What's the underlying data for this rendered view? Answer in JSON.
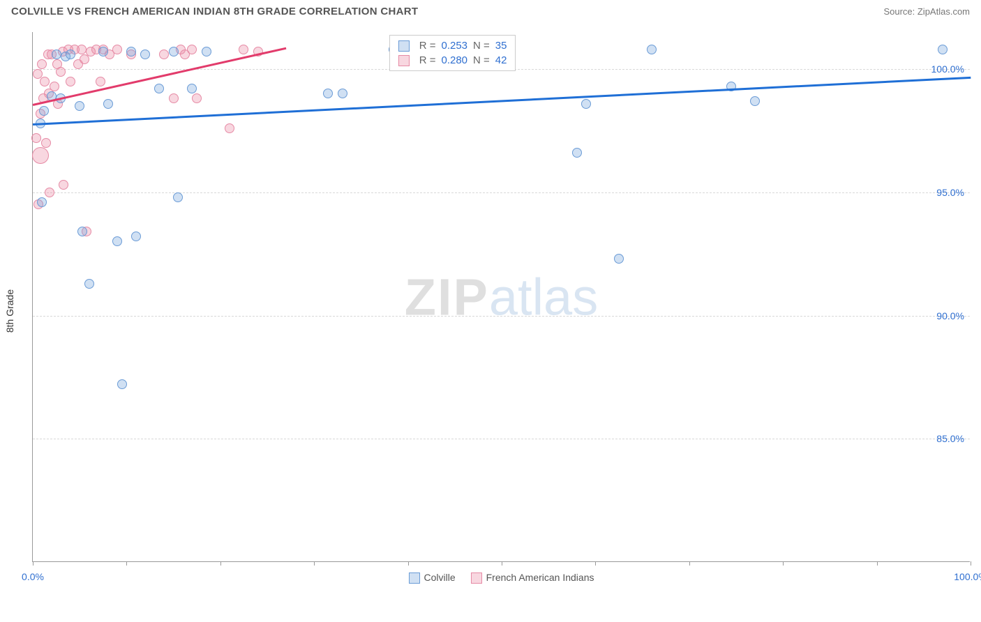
{
  "header": {
    "title": "COLVILLE VS FRENCH AMERICAN INDIAN 8TH GRADE CORRELATION CHART",
    "source": "Source: ZipAtlas.com"
  },
  "watermark": {
    "zip": "ZIP",
    "atlas": "atlas"
  },
  "chart": {
    "type": "scatter",
    "yaxis_title": "8th Grade",
    "xlim": [
      0,
      100
    ],
    "ylim": [
      80,
      101.5
    ],
    "x_ticks": [
      0,
      10,
      20,
      30,
      40,
      50,
      60,
      70,
      80,
      90,
      100
    ],
    "x_tick_labels": {
      "0": "0.0%",
      "100": "100.0%"
    },
    "y_gridlines": [
      85,
      90,
      95,
      100
    ],
    "y_tick_labels": {
      "85": "85.0%",
      "90": "90.0%",
      "95": "95.0%",
      "100": "100.0%"
    },
    "axis_label_color": "#2f6fd0",
    "grid_color": "#d8d8d8",
    "background_color": "#ffffff",
    "series": [
      {
        "name": "Colville",
        "fill": "rgba(120,165,220,0.35)",
        "stroke": "#6a9bd6",
        "trend_color": "#1f6fd6",
        "trend": {
          "x1": 0,
          "y1": 97.8,
          "x2": 100,
          "y2": 99.7
        },
        "r_value": "0.253",
        "n_value": "35",
        "points": [
          {
            "x": 0.8,
            "y": 97.8,
            "r": 7
          },
          {
            "x": 1.2,
            "y": 98.3,
            "r": 7
          },
          {
            "x": 1.0,
            "y": 94.6,
            "r": 7
          },
          {
            "x": 2.0,
            "y": 98.9,
            "r": 7
          },
          {
            "x": 2.5,
            "y": 100.6,
            "r": 7
          },
          {
            "x": 3.0,
            "y": 98.8,
            "r": 7
          },
          {
            "x": 3.5,
            "y": 100.5,
            "r": 7
          },
          {
            "x": 4.0,
            "y": 100.6,
            "r": 7
          },
          {
            "x": 5.0,
            "y": 98.5,
            "r": 7
          },
          {
            "x": 5.3,
            "y": 93.4,
            "r": 7
          },
          {
            "x": 6.0,
            "y": 91.3,
            "r": 7
          },
          {
            "x": 7.5,
            "y": 100.7,
            "r": 7
          },
          {
            "x": 8.0,
            "y": 98.6,
            "r": 7
          },
          {
            "x": 9.0,
            "y": 93.0,
            "r": 7
          },
          {
            "x": 9.5,
            "y": 87.2,
            "r": 7
          },
          {
            "x": 10.5,
            "y": 100.7,
            "r": 7
          },
          {
            "x": 11.0,
            "y": 93.2,
            "r": 7
          },
          {
            "x": 12.0,
            "y": 100.6,
            "r": 7
          },
          {
            "x": 13.5,
            "y": 99.2,
            "r": 7
          },
          {
            "x": 15.0,
            "y": 100.7,
            "r": 7
          },
          {
            "x": 15.5,
            "y": 94.8,
            "r": 7
          },
          {
            "x": 17.0,
            "y": 99.2,
            "r": 7
          },
          {
            "x": 18.5,
            "y": 100.7,
            "r": 7
          },
          {
            "x": 31.5,
            "y": 99.0,
            "r": 7
          },
          {
            "x": 33.0,
            "y": 99.0,
            "r": 7
          },
          {
            "x": 38.5,
            "y": 100.8,
            "r": 7
          },
          {
            "x": 40.0,
            "y": 100.8,
            "r": 7
          },
          {
            "x": 42.0,
            "y": 100.8,
            "r": 7
          },
          {
            "x": 58.0,
            "y": 96.6,
            "r": 7
          },
          {
            "x": 59.0,
            "y": 98.6,
            "r": 7
          },
          {
            "x": 62.5,
            "y": 92.3,
            "r": 7
          },
          {
            "x": 66.0,
            "y": 100.8,
            "r": 7
          },
          {
            "x": 74.5,
            "y": 99.3,
            "r": 7
          },
          {
            "x": 77.0,
            "y": 98.7,
            "r": 7
          },
          {
            "x": 97.0,
            "y": 100.8,
            "r": 7
          }
        ]
      },
      {
        "name": "French American Indians",
        "fill": "rgba(235,140,165,0.35)",
        "stroke": "#e68aa5",
        "trend_color": "#e23b6b",
        "trend": {
          "x1": 0,
          "y1": 98.6,
          "x2": 27,
          "y2": 100.9
        },
        "r_value": "0.280",
        "n_value": "42",
        "points": [
          {
            "x": 0.4,
            "y": 97.2,
            "r": 7
          },
          {
            "x": 0.5,
            "y": 99.8,
            "r": 7
          },
          {
            "x": 0.6,
            "y": 94.5,
            "r": 7
          },
          {
            "x": 0.8,
            "y": 98.2,
            "r": 7
          },
          {
            "x": 0.8,
            "y": 96.5,
            "r": 12
          },
          {
            "x": 1.0,
            "y": 100.2,
            "r": 7
          },
          {
            "x": 1.1,
            "y": 98.8,
            "r": 7
          },
          {
            "x": 1.3,
            "y": 99.5,
            "r": 7
          },
          {
            "x": 1.4,
            "y": 97.0,
            "r": 7
          },
          {
            "x": 1.6,
            "y": 100.6,
            "r": 7
          },
          {
            "x": 1.7,
            "y": 99.0,
            "r": 7
          },
          {
            "x": 1.8,
            "y": 95.0,
            "r": 7
          },
          {
            "x": 2.0,
            "y": 100.6,
            "r": 7
          },
          {
            "x": 2.3,
            "y": 99.3,
            "r": 7
          },
          {
            "x": 2.6,
            "y": 100.2,
            "r": 7
          },
          {
            "x": 2.7,
            "y": 98.6,
            "r": 7
          },
          {
            "x": 3.0,
            "y": 99.9,
            "r": 7
          },
          {
            "x": 3.2,
            "y": 100.7,
            "r": 7
          },
          {
            "x": 3.3,
            "y": 95.3,
            "r": 7
          },
          {
            "x": 3.8,
            "y": 100.8,
            "r": 7
          },
          {
            "x": 4.0,
            "y": 99.5,
            "r": 7
          },
          {
            "x": 4.5,
            "y": 100.8,
            "r": 7
          },
          {
            "x": 4.8,
            "y": 100.2,
            "r": 7
          },
          {
            "x": 5.2,
            "y": 100.8,
            "r": 7
          },
          {
            "x": 5.5,
            "y": 100.4,
            "r": 7
          },
          {
            "x": 5.7,
            "y": 93.4,
            "r": 7
          },
          {
            "x": 6.2,
            "y": 100.7,
            "r": 7
          },
          {
            "x": 6.8,
            "y": 100.8,
            "r": 7
          },
          {
            "x": 7.2,
            "y": 99.5,
            "r": 7
          },
          {
            "x": 7.5,
            "y": 100.8,
            "r": 7
          },
          {
            "x": 8.2,
            "y": 100.6,
            "r": 7
          },
          {
            "x": 9.0,
            "y": 100.8,
            "r": 7
          },
          {
            "x": 10.5,
            "y": 100.6,
            "r": 7
          },
          {
            "x": 14.0,
            "y": 100.6,
            "r": 7
          },
          {
            "x": 15.0,
            "y": 98.8,
            "r": 7
          },
          {
            "x": 15.8,
            "y": 100.8,
            "r": 7
          },
          {
            "x": 16.2,
            "y": 100.6,
            "r": 7
          },
          {
            "x": 17.0,
            "y": 100.8,
            "r": 7
          },
          {
            "x": 17.5,
            "y": 98.8,
            "r": 7
          },
          {
            "x": 21.0,
            "y": 97.6,
            "r": 7
          },
          {
            "x": 22.5,
            "y": 100.8,
            "r": 7
          },
          {
            "x": 24.0,
            "y": 100.7,
            "r": 7
          }
        ]
      }
    ],
    "legend_top": {
      "r_label": "R =",
      "n_label": "N ="
    },
    "legend_bottom_labels": [
      "Colville",
      "French American Indians"
    ]
  }
}
